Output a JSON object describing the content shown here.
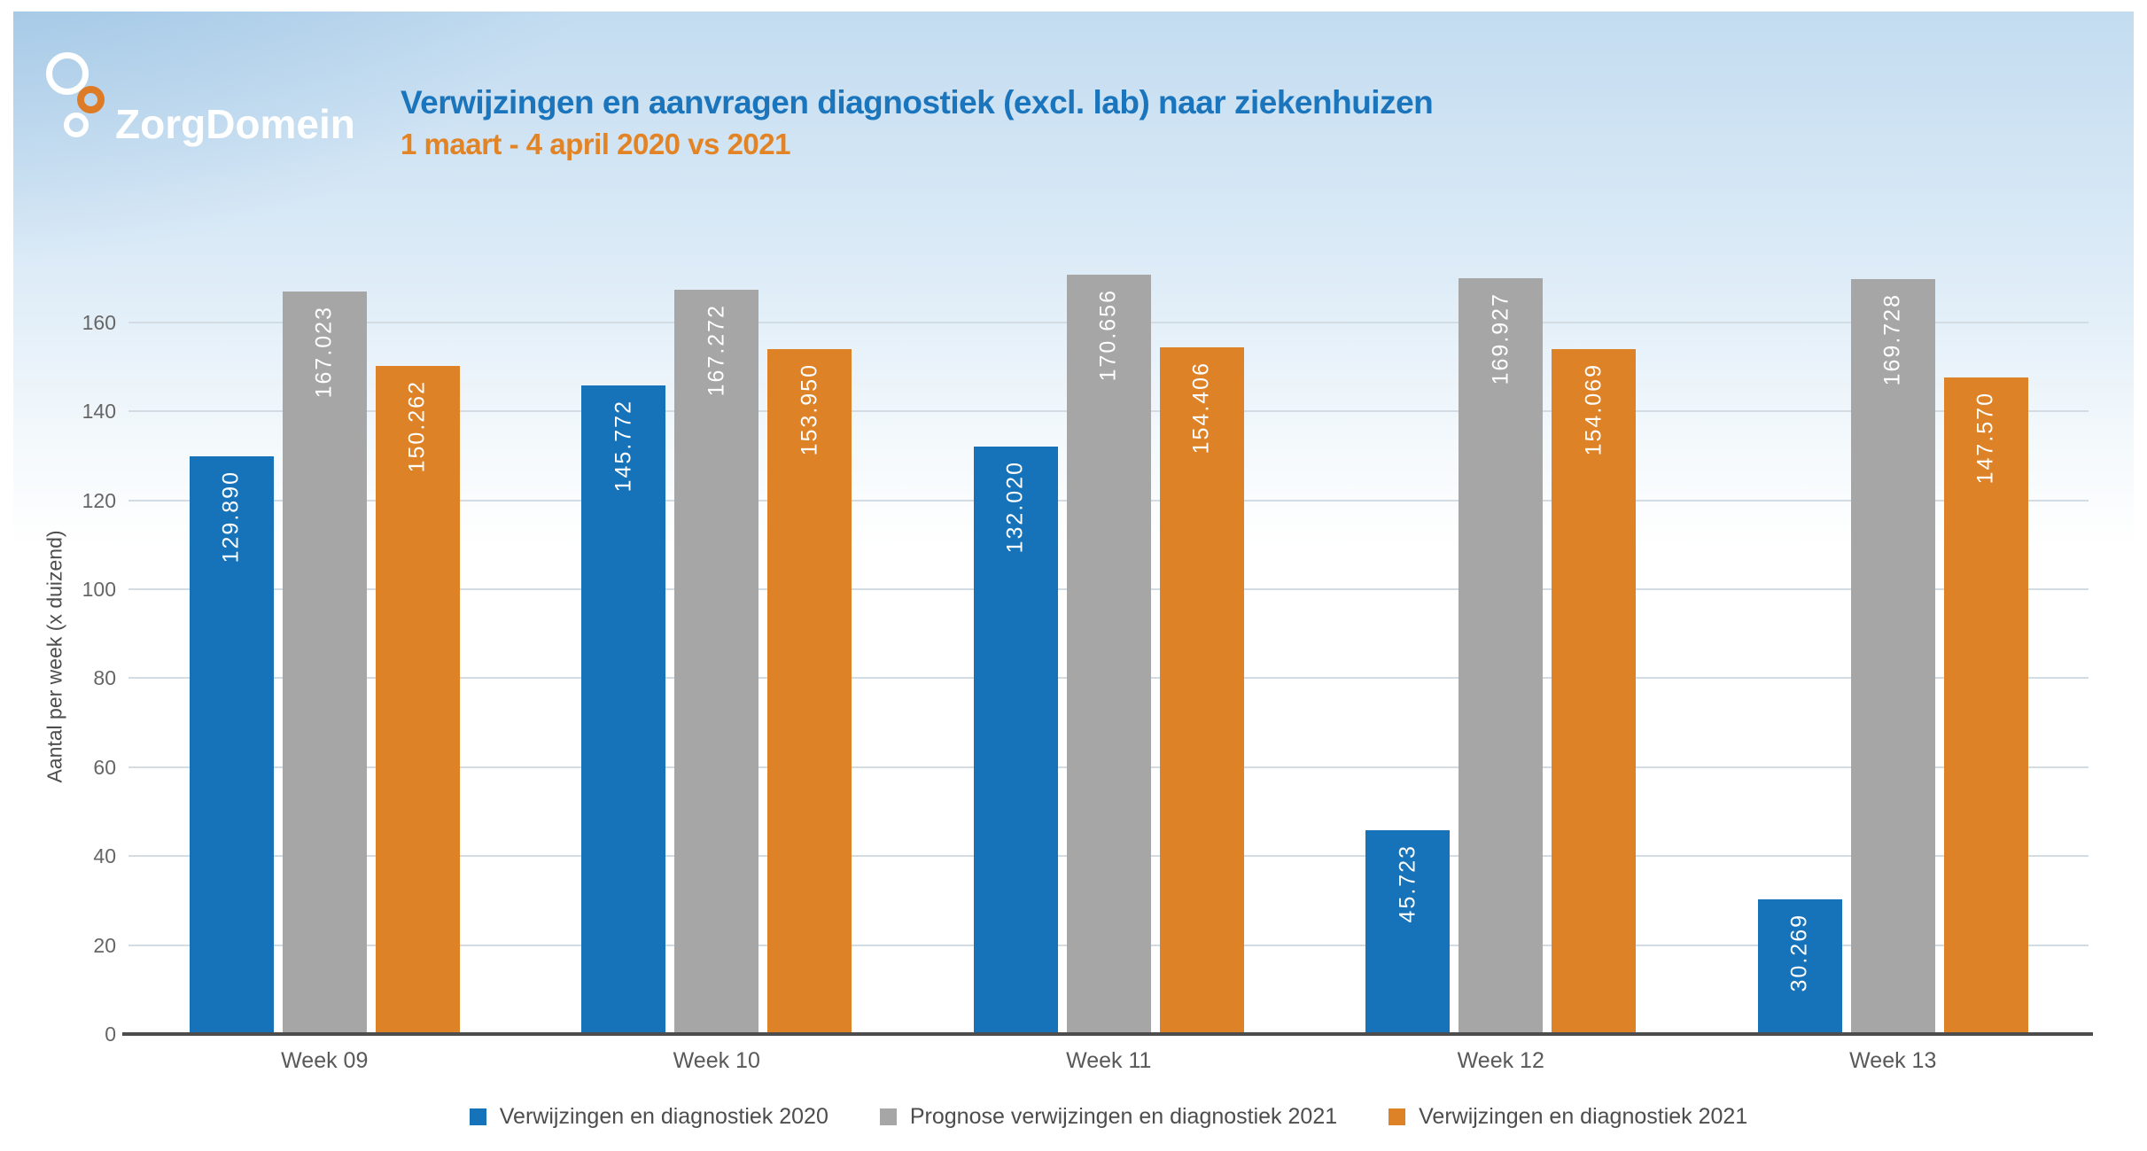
{
  "header": {
    "logo_text": "ZorgDomein"
  },
  "chart_data": {
    "type": "bar",
    "title": "Verwijzingen en aanvragen diagnostiek (excl. lab) naar ziekenhuizen",
    "subtitle": "1 maart - 4 april 2020 vs 2021",
    "ylabel": "Aantal per week (x duizend)",
    "categories": [
      "Week 09",
      "Week 10",
      "Week 11",
      "Week 12",
      "Week 13"
    ],
    "series": [
      {
        "name": "Verwijzingen en diagnostiek 2020",
        "color": "#1673b9",
        "values": [
          129890,
          145772,
          132020,
          45723,
          30269
        ],
        "labels": [
          "129.890",
          "145.772",
          "132.020",
          "45.723",
          "30.269"
        ]
      },
      {
        "name": "Prognose verwijzingen en diagnostiek 2021",
        "color": "#a6a6a6",
        "values": [
          167023,
          167272,
          170656,
          169927,
          169728
        ],
        "labels": [
          "167.023",
          "167.272",
          "170.656",
          "169.927",
          "169.728"
        ]
      },
      {
        "name": "Verwijzingen en diagnostiek 2021",
        "color": "#dd8227",
        "values": [
          150262,
          153950,
          154406,
          154069,
          147570
        ],
        "labels": [
          "150.262",
          "153.950",
          "154.406",
          "154.069",
          "147.570"
        ]
      }
    ],
    "yticks": [
      0,
      20,
      40,
      60,
      80,
      100,
      120,
      140,
      160
    ],
    "ylim": [
      0,
      173.7
    ],
    "grid": true,
    "legend_position": "bottom",
    "colors": {
      "title": "#1b75bc",
      "subtitle": "#e28426",
      "logo_orange": "#dd7b26",
      "grid_line": "#d3dbe3",
      "axis_line": "#4d4d4d",
      "tick_text": "#666666",
      "category_text": "#595959",
      "legend_text": "#4d4d4d",
      "bar_label_text": "#ffffff"
    }
  }
}
